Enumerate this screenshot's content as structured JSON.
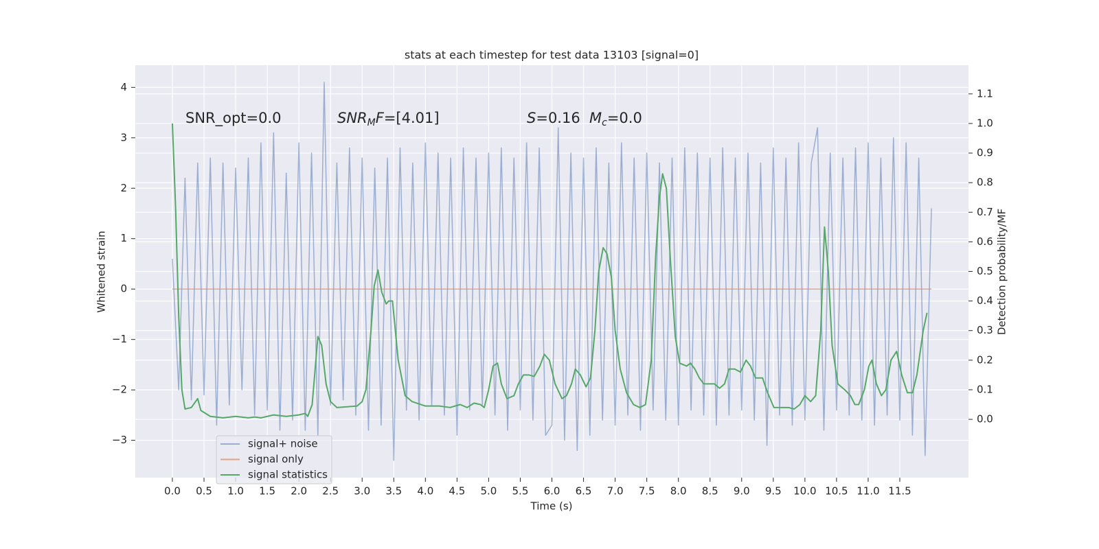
{
  "chart_data": {
    "type": "line",
    "title": "stats at each timestep for test data 13103 [signal=0]",
    "xlabel": "Time (s)",
    "ylabel": "Whitened strain",
    "y2label": "Detection probability/MF",
    "background": "#eaeaf2",
    "grid": true,
    "legend": "lower left",
    "xlim": [
      -0.586,
      12.586
    ],
    "ylim": [
      -3.74,
      4.44
    ],
    "y2lim": [
      -0.197,
      1.197
    ],
    "xticks": [
      {
        "value": 0,
        "label": "0.0"
      },
      0.5,
      {
        "value": 1,
        "label": "1.0"
      },
      1.5,
      {
        "value": 2,
        "label": "2.0"
      },
      2.5,
      {
        "value": 3,
        "label": "3.0"
      },
      3.5,
      {
        "value": 4,
        "label": "4.0"
      },
      4.5,
      {
        "value": 5,
        "label": "5.0"
      },
      5.5,
      {
        "value": 6,
        "label": "6.0"
      },
      6.5,
      {
        "value": 7,
        "label": "7.0"
      },
      7.5,
      {
        "value": 8,
        "label": "8.0"
      },
      8.5,
      {
        "value": 9,
        "label": "9.0"
      },
      9.5,
      {
        "value": 10,
        "label": "10.0"
      },
      10.5,
      {
        "value": 11,
        "label": "11.0"
      },
      11.5
    ],
    "yticks": [
      {
        "value": -3,
        "label": "−3"
      },
      {
        "value": -2,
        "label": "−2"
      },
      {
        "value": -1,
        "label": "−1"
      },
      0,
      1,
      2,
      3,
      4
    ],
    "y2ticks": [
      {
        "value": 0,
        "label": "0.0"
      },
      0.1,
      0.2,
      0.3,
      0.4,
      0.5,
      0.6,
      0.7,
      0.8,
      0.9,
      {
        "value": 1,
        "label": "1.0"
      },
      1.1
    ],
    "annotations": [
      [
        {
          "text": "SNR_opt=0.0"
        }
      ],
      [
        {
          "text": "SNR",
          "style": "italic"
        },
        {
          "text": "M",
          "style": "italic-sub"
        },
        {
          "text": "F",
          "style": "italic"
        },
        {
          "text": "=[4.01]"
        }
      ],
      [
        {
          "text": "S",
          "style": "italic"
        },
        {
          "text": "=0.16"
        }
      ],
      [
        {
          "text": "M",
          "style": "italic"
        },
        {
          "text": "c",
          "style": "italic-sub"
        },
        {
          "text": "=0.0"
        }
      ]
    ],
    "series": [
      {
        "name": "signal+ noise",
        "color": "#4c72b0",
        "opacity": 0.5,
        "x": [
          0.0,
          0.1,
          0.2,
          0.3,
          0.4,
          0.5,
          0.6,
          0.7,
          0.8,
          0.9,
          1.0,
          1.1,
          1.2,
          1.3,
          1.4,
          1.5,
          1.6,
          1.7,
          1.8,
          1.9,
          2.0,
          2.1,
          2.2,
          2.3,
          2.4,
          2.5,
          2.6,
          2.7,
          2.8,
          2.9,
          3.0,
          3.1,
          3.2,
          3.3,
          3.4,
          3.5,
          3.6,
          3.7,
          3.8,
          3.9,
          4.0,
          4.1,
          4.2,
          4.3,
          4.4,
          4.5,
          4.6,
          4.7,
          4.8,
          4.9,
          5.0,
          5.1,
          5.2,
          5.3,
          5.4,
          5.5,
          5.6,
          5.7,
          5.8,
          5.9,
          6.0,
          6.1,
          6.2,
          6.3,
          6.4,
          6.5,
          6.6,
          6.7,
          6.8,
          6.9,
          7.0,
          7.1,
          7.2,
          7.3,
          7.4,
          7.5,
          7.6,
          7.7,
          7.8,
          7.9,
          8.0,
          8.1,
          8.2,
          8.3,
          8.4,
          8.5,
          8.6,
          8.7,
          8.8,
          8.9,
          9.0,
          9.1,
          9.2,
          9.3,
          9.4,
          9.5,
          9.6,
          9.7,
          9.8,
          9.9,
          10.0,
          10.1,
          10.2,
          10.3,
          10.4,
          10.5,
          10.6,
          10.7,
          10.8,
          10.9,
          11.0,
          11.1,
          11.2,
          11.3,
          11.4,
          11.5,
          11.6,
          11.7,
          11.8,
          11.9,
          12.0
        ],
        "values": [
          0.6,
          -2.0,
          2.2,
          -2.2,
          2.5,
          -2.1,
          2.6,
          -2.7,
          2.5,
          -2.3,
          2.4,
          -2.0,
          2.6,
          -2.5,
          2.9,
          -2.4,
          3.1,
          -2.8,
          2.3,
          -2.6,
          2.9,
          -2.8,
          2.7,
          -2.9,
          4.1,
          -2.3,
          2.5,
          -2.2,
          2.8,
          -2.5,
          2.6,
          -2.8,
          2.4,
          -2.7,
          2.6,
          -3.4,
          2.8,
          -2.4,
          2.5,
          -2.6,
          2.9,
          -2.3,
          2.7,
          -2.5,
          2.6,
          -2.9,
          2.8,
          -2.4,
          2.6,
          -2.3,
          2.7,
          -2.5,
          2.8,
          -2.8,
          2.6,
          -2.4,
          2.9,
          -2.6,
          2.8,
          -2.9,
          -2.7,
          3.2,
          -3.0,
          2.7,
          -3.2,
          2.6,
          -2.9,
          2.8,
          -2.6,
          2.5,
          -2.7,
          2.9,
          -2.5,
          2.6,
          -2.8,
          2.7,
          -2.4,
          2.5,
          -2.6,
          2.6,
          -2.7,
          2.8,
          -2.4,
          2.7,
          -2.5,
          2.6,
          -2.7,
          2.8,
          -2.5,
          2.6,
          -2.4,
          2.7,
          -2.6,
          2.5,
          -3.1,
          2.8,
          -2.5,
          2.6,
          -2.7,
          2.9,
          -2.6,
          2.5,
          3.2,
          -2.8,
          2.7,
          -2.4,
          2.6,
          -2.5,
          2.8,
          -2.6,
          2.9,
          -2.7,
          2.6,
          -2.5,
          3.0,
          -2.6,
          2.9,
          -2.9,
          2.6,
          -3.3,
          1.6
        ]
      },
      {
        "name": "signal only",
        "color": "#dd8452",
        "opacity": 0.7,
        "x": [
          0.0,
          12.0
        ],
        "values": [
          0,
          0
        ]
      },
      {
        "name": "signal statistics",
        "color": "#55a868",
        "opacity": 1,
        "axis": "y2",
        "x": [
          0,
          0.05,
          0.1,
          0.15,
          0.2,
          0.3,
          0.4,
          0.45,
          0.6,
          0.8,
          1.0,
          1.2,
          1.3,
          1.4,
          1.5,
          1.6,
          1.8,
          2.0,
          2.1,
          2.14,
          2.21,
          2.3,
          2.36,
          2.43,
          2.5,
          2.6,
          2.92,
          3.0,
          3.06,
          3.14,
          3.19,
          3.25,
          3.31,
          3.38,
          3.42,
          3.48,
          3.57,
          3.68,
          3.79,
          4.0,
          4.22,
          4.39,
          4.55,
          4.66,
          4.77,
          4.87,
          4.93,
          5.0,
          5.07,
          5.14,
          5.2,
          5.29,
          5.4,
          5.47,
          5.55,
          5.64,
          5.72,
          5.81,
          5.88,
          5.96,
          6.05,
          6.16,
          6.23,
          6.31,
          6.37,
          6.45,
          6.54,
          6.61,
          6.68,
          6.74,
          6.81,
          6.87,
          6.94,
          7.0,
          7.08,
          7.18,
          7.29,
          7.39,
          7.48,
          7.57,
          7.64,
          7.7,
          7.75,
          7.81,
          7.87,
          7.95,
          8.02,
          8.13,
          8.19,
          8.26,
          8.33,
          8.4,
          8.57,
          8.65,
          8.73,
          8.8,
          8.89,
          8.98,
          9.07,
          9.14,
          9.22,
          9.33,
          9.41,
          9.51,
          9.63,
          9.74,
          9.83,
          9.92,
          10.0,
          10.09,
          10.17,
          10.25,
          10.31,
          10.37,
          10.43,
          10.52,
          10.63,
          10.72,
          10.79,
          10.85,
          10.94,
          11.01,
          11.06,
          11.13,
          11.21,
          11.28,
          11.36,
          11.45,
          11.53,
          11.62,
          11.7,
          11.77,
          11.87,
          11.93
        ],
        "values": [
          1.0,
          0.72,
          0.35,
          0.1,
          0.035,
          0.04,
          0.07,
          0.03,
          0.01,
          0.005,
          0.01,
          0.005,
          0.008,
          0.005,
          0.01,
          0.015,
          0.01,
          0.015,
          0.02,
          0.01,
          0.05,
          0.28,
          0.25,
          0.12,
          0.06,
          0.04,
          0.045,
          0.06,
          0.1,
          0.3,
          0.45,
          0.505,
          0.43,
          0.39,
          0.4,
          0.4,
          0.2,
          0.08,
          0.06,
          0.045,
          0.045,
          0.04,
          0.05,
          0.04,
          0.055,
          0.05,
          0.04,
          0.1,
          0.18,
          0.19,
          0.12,
          0.07,
          0.08,
          0.12,
          0.15,
          0.15,
          0.145,
          0.18,
          0.22,
          0.2,
          0.12,
          0.07,
          0.08,
          0.12,
          0.17,
          0.15,
          0.11,
          0.14,
          0.3,
          0.5,
          0.58,
          0.56,
          0.48,
          0.3,
          0.17,
          0.09,
          0.05,
          0.04,
          0.05,
          0.2,
          0.55,
          0.75,
          0.83,
          0.78,
          0.55,
          0.28,
          0.19,
          0.18,
          0.19,
          0.17,
          0.14,
          0.12,
          0.12,
          0.105,
          0.12,
          0.17,
          0.17,
          0.16,
          0.2,
          0.18,
          0.14,
          0.14,
          0.09,
          0.04,
          0.04,
          0.04,
          0.035,
          0.05,
          0.08,
          0.06,
          0.08,
          0.3,
          0.65,
          0.5,
          0.25,
          0.12,
          0.1,
          0.08,
          0.05,
          0.05,
          0.1,
          0.18,
          0.2,
          0.12,
          0.08,
          0.1,
          0.2,
          0.23,
          0.15,
          0.09,
          0.09,
          0.15,
          0.3,
          0.36
        ]
      }
    ]
  }
}
